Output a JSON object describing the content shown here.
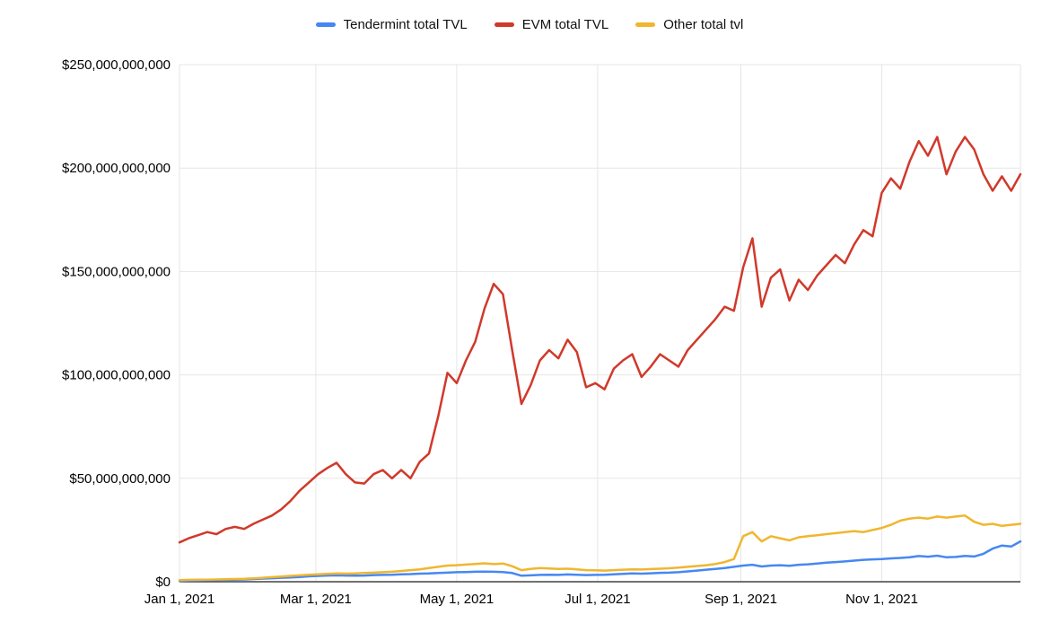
{
  "page": {
    "background": "#ffffff"
  },
  "chart_data": {
    "type": "line",
    "title": "",
    "values_unit": "USD billions",
    "legend_position": "top",
    "grid": "horizontal+vertical",
    "x_range": [
      0,
      364
    ],
    "y_range": [
      0,
      250
    ],
    "colors": {
      "grid": "#e6e6e6",
      "axis": "#424242",
      "text": "#000000",
      "background": "#ffffff"
    },
    "x_ticks": [
      {
        "day": 0,
        "label": "Jan 1, 2021"
      },
      {
        "day": 59,
        "label": "Mar 1, 2021"
      },
      {
        "day": 120,
        "label": "May 1, 2021"
      },
      {
        "day": 181,
        "label": "Jul 1, 2021"
      },
      {
        "day": 243,
        "label": "Sep 1, 2021"
      },
      {
        "day": 304,
        "label": "Nov 1, 2021"
      }
    ],
    "y_ticks": [
      {
        "value": 250,
        "label": "$250,000,000,000"
      },
      {
        "value": 200,
        "label": "$200,000,000,000"
      },
      {
        "value": 150,
        "label": "$150,000,000,000"
      },
      {
        "value": 100,
        "label": "$100,000,000,000"
      },
      {
        "value": 50,
        "label": "$50,000,000,000"
      },
      {
        "value": 0,
        "label": "$0"
      }
    ],
    "x_days": [
      0,
      4,
      8,
      12,
      16,
      20,
      24,
      28,
      32,
      36,
      40,
      44,
      48,
      52,
      56,
      60,
      64,
      68,
      72,
      76,
      80,
      84,
      88,
      92,
      96,
      100,
      104,
      108,
      112,
      116,
      120,
      124,
      128,
      132,
      136,
      140,
      144,
      148,
      152,
      156,
      160,
      164,
      168,
      172,
      176,
      180,
      184,
      188,
      192,
      196,
      200,
      204,
      208,
      212,
      216,
      220,
      224,
      228,
      232,
      236,
      240,
      244,
      248,
      252,
      256,
      260,
      264,
      268,
      272,
      276,
      280,
      284,
      288,
      292,
      296,
      300,
      304,
      308,
      312,
      316,
      320,
      324,
      328,
      332,
      336,
      340,
      344,
      348,
      352,
      356,
      360,
      364
    ],
    "series": [
      {
        "id": "tendermint",
        "name": "Tendermint total TVL",
        "color": "#4688f1",
        "values": [
          0.4,
          0.5,
          0.6,
          0.7,
          0.8,
          0.9,
          1.0,
          1.1,
          1.3,
          1.5,
          1.7,
          1.9,
          2.1,
          2.3,
          2.6,
          2.8,
          3.0,
          3.1,
          3.0,
          2.9,
          3.0,
          3.2,
          3.3,
          3.4,
          3.6,
          3.7,
          3.9,
          4.0,
          4.2,
          4.4,
          4.6,
          4.7,
          4.8,
          4.9,
          4.8,
          4.7,
          4.2,
          2.9,
          3.1,
          3.3,
          3.4,
          3.3,
          3.5,
          3.4,
          3.2,
          3.3,
          3.4,
          3.6,
          3.8,
          4.0,
          3.9,
          4.1,
          4.3,
          4.4,
          4.6,
          5.0,
          5.4,
          5.8,
          6.2,
          6.6,
          7.2,
          7.8,
          8.2,
          7.4,
          7.8,
          8.0,
          7.7,
          8.2,
          8.4,
          8.8,
          9.2,
          9.5,
          9.8,
          10.2,
          10.6,
          10.8,
          11.0,
          11.3,
          11.5,
          11.8,
          12.4,
          12.1,
          12.6,
          11.8,
          12.0,
          12.5,
          12.2,
          13.5,
          16.0,
          17.5,
          17.0,
          19.5
        ]
      },
      {
        "id": "evm",
        "name": "EVM total TVL",
        "color": "#d0392b",
        "values": [
          19,
          21,
          22.5,
          24,
          23,
          25.5,
          26.5,
          25.5,
          28,
          30,
          32,
          35,
          39,
          44,
          48,
          52,
          55,
          57.5,
          52,
          48,
          47.5,
          52,
          54,
          50,
          54,
          50,
          58,
          62,
          80,
          101,
          96,
          107,
          116,
          132,
          144,
          139,
          112,
          86,
          95,
          107,
          112,
          108,
          117,
          111,
          94,
          96,
          93,
          103,
          107,
          110,
          99,
          104,
          110,
          107,
          104,
          112,
          117,
          122,
          127,
          133,
          131,
          152,
          166,
          133,
          147,
          151,
          136,
          146,
          141,
          148,
          153,
          158,
          154,
          163,
          170,
          167,
          188,
          195,
          190,
          203,
          213,
          206,
          215,
          197,
          208,
          215,
          209,
          197,
          189,
          196,
          189,
          197
        ]
      },
      {
        "id": "other",
        "name": "Other total tvl",
        "color": "#f0b62f",
        "values": [
          0.8,
          0.9,
          1.0,
          1.0,
          1.1,
          1.2,
          1.3,
          1.4,
          1.6,
          1.9,
          2.2,
          2.5,
          2.8,
          3.1,
          3.4,
          3.6,
          3.8,
          4.0,
          3.9,
          4.0,
          4.2,
          4.4,
          4.6,
          4.8,
          5.2,
          5.6,
          6.0,
          6.6,
          7.2,
          7.8,
          8.0,
          8.3,
          8.6,
          8.9,
          8.5,
          8.8,
          7.5,
          5.6,
          6.2,
          6.6,
          6.4,
          6.2,
          6.3,
          6.0,
          5.6,
          5.5,
          5.4,
          5.6,
          5.8,
          6.0,
          5.9,
          6.1,
          6.3,
          6.5,
          6.8,
          7.2,
          7.6,
          8.0,
          8.6,
          9.5,
          11.0,
          22.0,
          24.0,
          19.5,
          22.0,
          21.0,
          20.0,
          21.5,
          22.0,
          22.5,
          23.0,
          23.5,
          24.0,
          24.5,
          24.0,
          25.0,
          26.0,
          27.5,
          29.5,
          30.5,
          31.0,
          30.5,
          31.5,
          31.0,
          31.5,
          32.0,
          29.0,
          27.5,
          28.0,
          27.0,
          27.5,
          28.0
        ]
      }
    ]
  }
}
